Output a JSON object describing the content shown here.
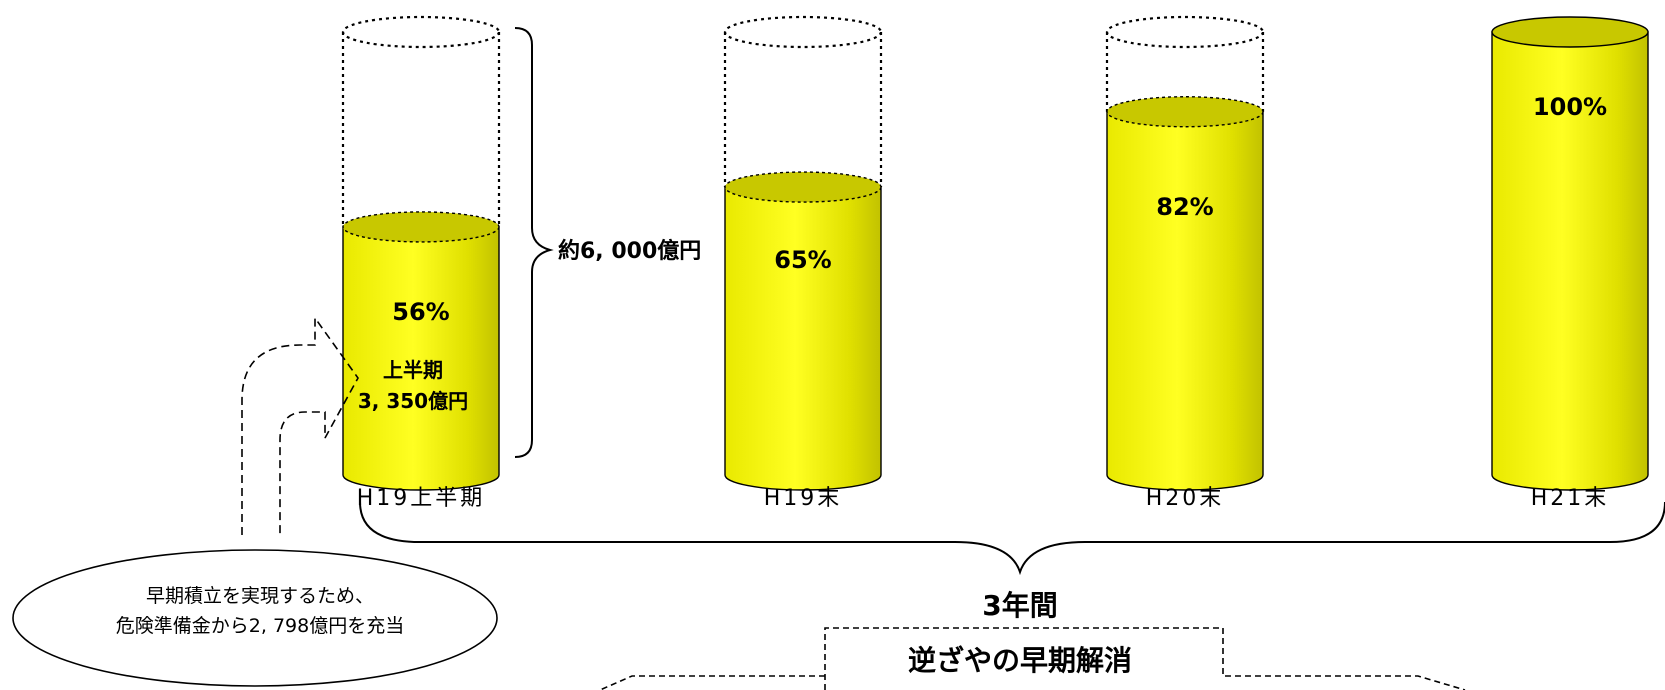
{
  "chart_data": {
    "type": "bar",
    "categories": [
      "H19上半期",
      "H19末",
      "H20末",
      "H21末"
    ],
    "values": [
      56,
      65,
      82,
      100
    ],
    "value_labels": [
      "56%",
      "65%",
      "82%",
      "100%"
    ],
    "ylim": [
      0,
      100
    ],
    "bar_color": "#f2f200",
    "bar_top_color": "#c8c800"
  },
  "annotations": {
    "total_amount": "約6, 000億円",
    "first_half_title": "上半期",
    "first_half_amount": "3, 350億円",
    "callout_line1": "早期積立を実現するため、",
    "callout_line2": "危険準備金から2, 798億円を充当",
    "period": "3年間",
    "goal": "逆ざやの早期解消"
  }
}
